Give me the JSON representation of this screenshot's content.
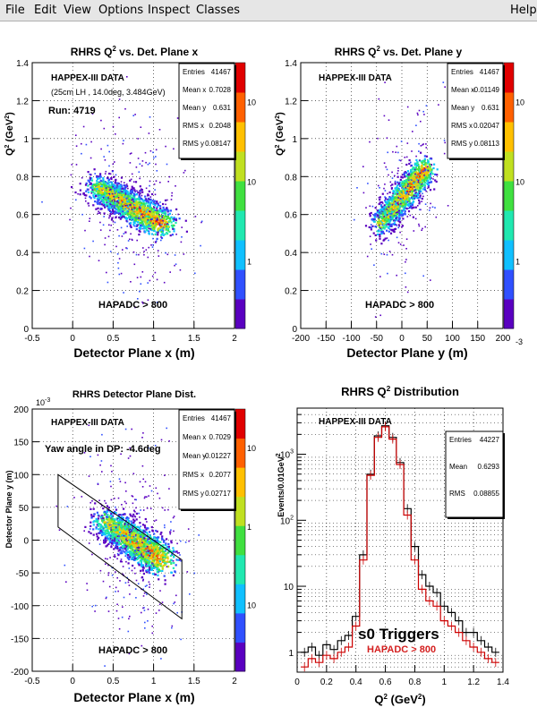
{
  "menu": {
    "items": [
      "File",
      "Edit",
      "View",
      "Options",
      "Inspect",
      "Classes"
    ],
    "help": "Help"
  },
  "colors": {
    "palette": [
      "#5a00c0",
      "#3050ff",
      "#10c0ff",
      "#20e8b0",
      "#40e040",
      "#c0e020",
      "#ffc000",
      "#ff6000",
      "#e00000"
    ],
    "line_black": "#000000",
    "line_red": "#cc0000",
    "label_red": "#d42020"
  },
  "chart_data": [
    {
      "type": "heatmap",
      "title_main": "RHRS Q",
      "title_sup": "2",
      "title_rest": " vs. Det. Plane x",
      "xlabel": "Detector Plane x (m)",
      "ylabel_main": "Q",
      "ylabel_sup": "2",
      "ylabel_rest": " (GeV",
      "ylabel_sup2": "2",
      "ylabel_end": ")",
      "xlim": [
        -0.5,
        2
      ],
      "ylim": [
        0,
        1.4
      ],
      "xticks": [
        "-0.5",
        "0",
        "0.5",
        "1",
        "1.5",
        "2"
      ],
      "yticks": [
        "0",
        "0.2",
        "0.4",
        "0.6",
        "0.8",
        "1",
        "1.2",
        "1.4"
      ],
      "grid": true,
      "annotations": [
        "HAPPEX-III DATA",
        "(25cm LH  , 14.0deg, 3.484GeV)",
        "Run: 4719",
        "HAPADC > 800"
      ],
      "stats": [
        {
          "label": "Entries",
          "value": "41467"
        },
        {
          "label": "Mean x",
          "value": "0.7028"
        },
        {
          "label": "Mean y",
          "value": "0.631"
        },
        {
          "label": "RMS x",
          "value": "0.2048"
        },
        {
          "label": "RMS y",
          "value": "0.08147"
        }
      ],
      "colorbar_labels": [
        "10",
        "10",
        "1"
      ],
      "band": {
        "start": [
          0.3,
          0.75
        ],
        "end": [
          1.1,
          0.55
        ]
      }
    },
    {
      "type": "heatmap",
      "title_main": "RHRS Q",
      "title_sup": "2",
      "title_rest": " vs. Det. Plane y",
      "xlabel": "Detector Plane y (m)",
      "ylabel_main": "Q",
      "ylabel_sup": "2",
      "ylabel_rest": " (GeV",
      "ylabel_sup2": "2",
      "ylabel_end": ")",
      "xlim": [
        -200,
        200
      ],
      "ylim": [
        0,
        1.4
      ],
      "xticks": [
        "-200",
        "-150",
        "-100",
        "-50",
        "0",
        "50",
        "100",
        "150",
        "200"
      ],
      "yticks": [
        "0",
        "0.2",
        "0.4",
        "0.6",
        "0.8",
        "1",
        "1.2",
        "1.4"
      ],
      "grid": true,
      "annotations": [
        "HAPPEX-III DATA",
        "HAPADC > 800"
      ],
      "stats": [
        {
          "label": "Entries",
          "value": "41467"
        },
        {
          "label": "Mean x",
          "value": "-0.01149"
        },
        {
          "label": "Mean y",
          "value": "0.631"
        },
        {
          "label": "RMS x",
          "value": "0.02047"
        },
        {
          "label": "RMS y",
          "value": "0.08113"
        }
      ],
      "colorbar_labels": [
        "10",
        "10",
        "1",
        "-3"
      ],
      "band": {
        "start": [
          -45,
          0.55
        ],
        "end": [
          45,
          0.85
        ]
      }
    },
    {
      "type": "heatmap",
      "title": "RHRS Detector Plane Dist.",
      "xlabel": "Detector Plane x (m)",
      "ylabel": "Detector Plane y (m)",
      "y_exponent": "10",
      "y_exponent_power": "-3",
      "xlim": [
        -0.5,
        2
      ],
      "ylim": [
        -200,
        200
      ],
      "xticks": [
        "-0.5",
        "0",
        "0.5",
        "1",
        "1.5",
        "2"
      ],
      "yticks": [
        "-200",
        "-150",
        "-100",
        "-50",
        "0",
        "50",
        "100",
        "150",
        "200"
      ],
      "grid": true,
      "annotations": [
        "HAPPEX-III DATA",
        "Yaw angle in DP: -4.6deg",
        "HAPADC > 800"
      ],
      "stats": [
        {
          "label": "Entries",
          "value": "41467"
        },
        {
          "label": "Mean x",
          "value": "0.7029"
        },
        {
          "label": "Mean y",
          "value": "-0.01227"
        },
        {
          "label": "RMS x",
          "value": "0.2077"
        },
        {
          "label": "RMS y",
          "value": "0.02717"
        }
      ],
      "colorbar_labels": [
        "10",
        "1",
        "10"
      ],
      "band": {
        "start": [
          0.4,
          30
        ],
        "end": [
          1.1,
          -30
        ]
      },
      "outline": [
        [
          -0.18,
          100
        ],
        [
          1.35,
          -30
        ],
        [
          1.35,
          -120
        ],
        [
          -0.18,
          20
        ]
      ]
    },
    {
      "type": "line",
      "title_main": "RHRS Q",
      "title_sup": "2",
      "title_rest": " Distribution",
      "xlabel_main": "Q",
      "xlabel_sup": "2",
      "xlabel_rest": " (GeV",
      "xlabel_sup2": "2",
      "xlabel_end": ")",
      "ylabel": "Events/0.01GeV",
      "ylabel_sup": "2",
      "ylog": true,
      "xlim": [
        0,
        1.4
      ],
      "ylim": [
        0.5,
        5000
      ],
      "xticks": [
        "0",
        "0.2",
        "0.4",
        "0.6",
        "0.8",
        "1",
        "1.2",
        "1.4"
      ],
      "yticks": [
        {
          "base": "1",
          "pow": ""
        },
        {
          "base": "10",
          "pow": ""
        },
        {
          "base": "10",
          "pow": "2"
        },
        {
          "base": "10",
          "pow": "3"
        }
      ],
      "grid": true,
      "annotations": [
        "HAPPEX-III DATA",
        "s0 Triggers",
        "HAPADC > 800"
      ],
      "stats": [
        {
          "label": "Entries",
          "value": "44227"
        },
        {
          "label": "Mean",
          "value": "0.6293"
        },
        {
          "label": "RMS",
          "value": "0.08855"
        }
      ],
      "series": [
        {
          "x": [
            0.05,
            0.1,
            0.15,
            0.2,
            0.25,
            0.3,
            0.35,
            0.4,
            0.45,
            0.5,
            0.55,
            0.6,
            0.65,
            0.7,
            0.75,
            0.8,
            0.85,
            0.9,
            0.95,
            1.0,
            1.05,
            1.1,
            1.15,
            1.2,
            1.25,
            1.3,
            1.35
          ],
          "values": [
            1,
            1.2,
            0.9,
            1.3,
            1.1,
            1.5,
            1.8,
            3.5,
            30,
            500,
            1900,
            2700,
            1800,
            750,
            150,
            40,
            15,
            10,
            8,
            5,
            4,
            3,
            2,
            2,
            1.5,
            1.2,
            1
          ]
        },
        {
          "x": [
            0.05,
            0.1,
            0.15,
            0.2,
            0.25,
            0.3,
            0.35,
            0.4,
            0.45,
            0.5,
            0.55,
            0.6,
            0.65,
            0.7,
            0.75,
            0.8,
            0.85,
            0.9,
            0.95,
            1.0,
            1.05,
            1.1,
            1.15,
            1.2,
            1.25,
            1.3,
            1.35
          ],
          "values": [
            0.6,
            0.8,
            0.7,
            0.9,
            0.8,
            1,
            1.2,
            2.5,
            25,
            480,
            1800,
            2600,
            1700,
            700,
            120,
            25,
            9,
            6,
            5,
            3,
            2.5,
            2,
            1.5,
            1.2,
            1,
            0.8,
            0.7
          ]
        }
      ]
    }
  ]
}
